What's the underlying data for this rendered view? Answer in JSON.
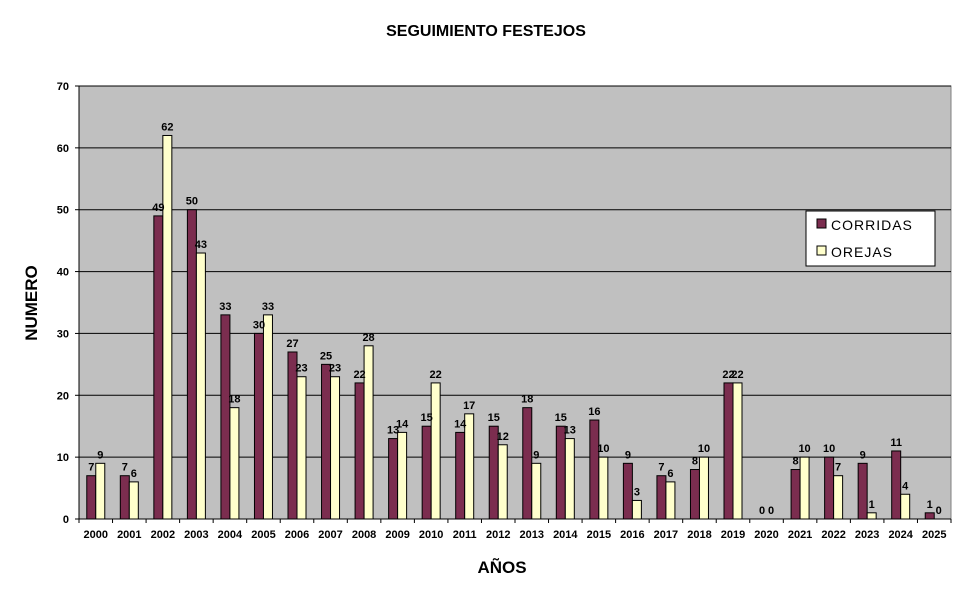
{
  "chart_data": {
    "type": "bar",
    "title": "SEGUIMIENTO FESTEJOS",
    "xlabel": "AÑOS",
    "ylabel": "NUMERO",
    "ylim": [
      0,
      70
    ],
    "yticks": [
      0,
      10,
      20,
      30,
      40,
      50,
      60,
      70
    ],
    "grid": true,
    "legend_position": "right",
    "plot_background": "#c0c0c0",
    "categories": [
      "2000",
      "2001",
      "2002",
      "2003",
      "2004",
      "2005",
      "2006",
      "2007",
      "2008",
      "2009",
      "2010",
      "2011",
      "2012",
      "2013",
      "2014",
      "2015",
      "2016",
      "2017",
      "2018",
      "2019",
      "2020",
      "2021",
      "2022",
      "2023",
      "2024",
      "2025"
    ],
    "series": [
      {
        "name": "CORRIDAS",
        "color": "#7b2d4f",
        "values": [
          7,
          7,
          49,
          50,
          33,
          30,
          27,
          25,
          22,
          13,
          15,
          14,
          15,
          18,
          15,
          16,
          9,
          7,
          8,
          22,
          0,
          8,
          10,
          9,
          11,
          1
        ]
      },
      {
        "name": "OREJAS",
        "color": "#ffffcc",
        "values": [
          9,
          6,
          62,
          43,
          18,
          33,
          23,
          23,
          28,
          14,
          22,
          17,
          12,
          9,
          13,
          10,
          3,
          6,
          10,
          22,
          0,
          10,
          7,
          1,
          4,
          0
        ]
      }
    ]
  }
}
